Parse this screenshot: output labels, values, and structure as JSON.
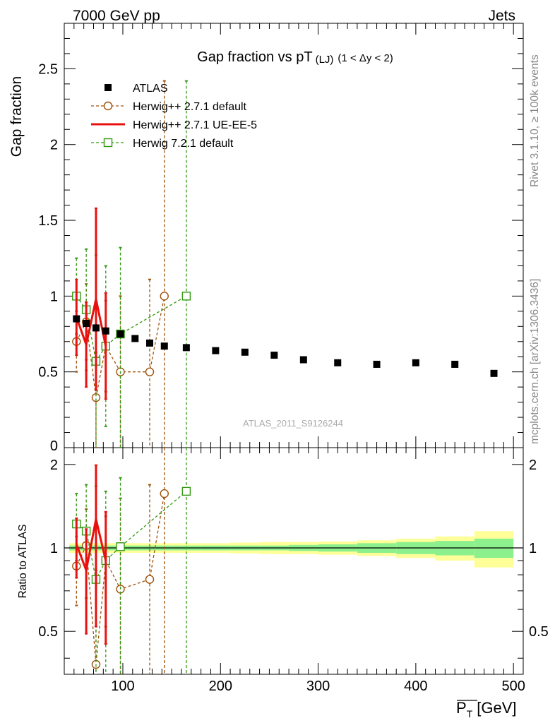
{
  "header": {
    "left": "7000 GeV pp",
    "right": "Jets",
    "side_top": "Rivet 3.1.10, ≥ 100k events",
    "side_bottom": "mcplots.cern.ch [arXiv:1306.3436]",
    "watermark": "ATLAS_2011_S9126244"
  },
  "colors": {
    "atlas": "#000000",
    "herwig_default": "#a0520a",
    "herwig_ueee5": "#e8110f",
    "herwig7": "#339911",
    "band_inner": "#8cf08c",
    "band_outer": "#ffff99"
  },
  "chart_data": [
    {
      "type": "scatter",
      "title": "Gap fraction vs pT",
      "title_sub": "(LJ)",
      "title_range": "(1 < Δy < 2)",
      "xlabel": "",
      "ylabel": "Gap fraction",
      "xlim": [
        40,
        510
      ],
      "ylim": [
        0,
        2.8
      ],
      "yticks": [
        0.5,
        1,
        1.5,
        2,
        2.5
      ],
      "ytick_labels": [
        "0.5",
        "1",
        "1.5",
        "2",
        "2.5"
      ],
      "y_zero_label": "0",
      "legend_position": "top-left",
      "series": [
        {
          "name": "ATLAS",
          "style": "marker-square",
          "x": [
            52.5,
            62.5,
            72.5,
            82.5,
            97.5,
            112.5,
            127.5,
            142.5,
            165,
            195,
            225,
            255,
            285,
            320,
            360,
            400,
            440,
            480
          ],
          "y": [
            0.85,
            0.82,
            0.79,
            0.77,
            0.75,
            0.72,
            0.69,
            0.67,
            0.66,
            0.64,
            0.63,
            0.61,
            0.58,
            0.56,
            0.55,
            0.56,
            0.55,
            0.49
          ]
        },
        {
          "name": "Herwig++ 2.7.1 default",
          "style": "dashed-circle",
          "x": [
            52.5,
            62.5,
            72.5,
            82.5,
            97.5,
            127.5,
            142.5
          ],
          "y": [
            0.7,
            0.83,
            0.33,
            0.67,
            0.5,
            0.5,
            1.0
          ],
          "yerr_low": [
            0.2,
            0.25,
            0.33,
            0.3,
            0.5,
            0.5,
            1.0
          ],
          "yerr_high": [
            0.2,
            0.25,
            0.3,
            0.3,
            0.5,
            0.61,
            1.42
          ]
        },
        {
          "name": "Herwig++ 2.7.1 UE-EE-5",
          "style": "solid-line",
          "x": [
            52.5,
            62.5,
            72.5,
            82.5
          ],
          "y": [
            0.86,
            0.68,
            0.98,
            0.67
          ],
          "yerr_low": [
            0.25,
            0.28,
            0.6,
            0.35
          ],
          "yerr_high": [
            0.25,
            0.28,
            0.6,
            0.35
          ]
        },
        {
          "name": "Herwig 7.2.1 default",
          "style": "dashed-square",
          "x": [
            52.5,
            62.5,
            72.5,
            82.5,
            97.5,
            165
          ],
          "y": [
            1.0,
            0.91,
            0.57,
            0.67,
            0.75,
            1.0
          ],
          "yerr_low": [
            0.25,
            0.4,
            0.57,
            0.53,
            0.75,
            1.0
          ],
          "yerr_high": [
            0.25,
            0.4,
            0.7,
            0.53,
            0.57,
            1.42
          ]
        }
      ]
    },
    {
      "type": "scatter",
      "ylabel": "Ratio to ATLAS",
      "xlabel": "P̄T [GeV]",
      "xlabel_main": "P",
      "xlabel_sub": "T",
      "xlabel_unit": "[GeV]",
      "xlim": [
        40,
        510
      ],
      "ylim": [
        0.35,
        2.3
      ],
      "xticks": [
        100,
        200,
        300,
        400,
        500
      ],
      "xtick_labels": [
        "100",
        "200",
        "300",
        "400",
        "500"
      ],
      "yticks": [
        0.5,
        1,
        2
      ],
      "ytick_labels": [
        "0.5",
        "1",
        "2"
      ],
      "bands": {
        "edges": [
          45,
          60,
          70,
          80,
          90,
          105,
          120,
          135,
          150,
          180,
          210,
          240,
          270,
          300,
          340,
          380,
          420,
          460,
          500
        ],
        "inner": [
          0.02,
          0.02,
          0.02,
          0.02,
          0.02,
          0.02,
          0.02,
          0.02,
          0.02,
          0.02,
          0.02,
          0.02,
          0.025,
          0.03,
          0.04,
          0.05,
          0.06,
          0.08
        ],
        "outer": [
          0.04,
          0.04,
          0.04,
          0.04,
          0.04,
          0.04,
          0.04,
          0.04,
          0.04,
          0.04,
          0.045,
          0.05,
          0.05,
          0.055,
          0.065,
          0.08,
          0.1,
          0.15
        ]
      },
      "series": [
        {
          "name": "Herwig++ 2.7.1 default",
          "style": "dashed-circle",
          "x": [
            52.5,
            62.5,
            72.5,
            82.5,
            97.5,
            127.5,
            142.5
          ],
          "y": [
            0.86,
            1.02,
            0.38,
            0.9,
            0.71,
            0.77,
            1.57
          ],
          "yerr_low": [
            0.24,
            0.36,
            0.38,
            0.38,
            0.71,
            0.77,
            1.57
          ],
          "yerr_high": [
            0.24,
            0.36,
            0.45,
            0.4,
            0.8,
            0.92,
            1.2
          ]
        },
        {
          "name": "Herwig++ 2.7.1 UE-EE-5",
          "style": "solid-line",
          "x": [
            52.5,
            62.5,
            72.5,
            82.5
          ],
          "y": [
            1.03,
            0.83,
            1.27,
            0.9
          ],
          "yerr_low": [
            0.25,
            0.34,
            0.75,
            0.45
          ],
          "yerr_high": [
            0.25,
            0.34,
            0.72,
            0.45
          ]
        },
        {
          "name": "Herwig 7.2.1 default",
          "style": "dashed-square",
          "x": [
            52.5,
            62.5,
            72.5,
            82.5,
            97.5,
            165
          ],
          "y": [
            1.22,
            1.15,
            0.77,
            0.9,
            1.01,
            1.6
          ],
          "yerr_low": [
            0.32,
            0.49,
            0.77,
            0.68,
            1.01,
            1.6
          ],
          "yerr_high": [
            0.35,
            0.54,
            0.9,
            0.7,
            0.78,
            1.0
          ]
        }
      ]
    }
  ]
}
